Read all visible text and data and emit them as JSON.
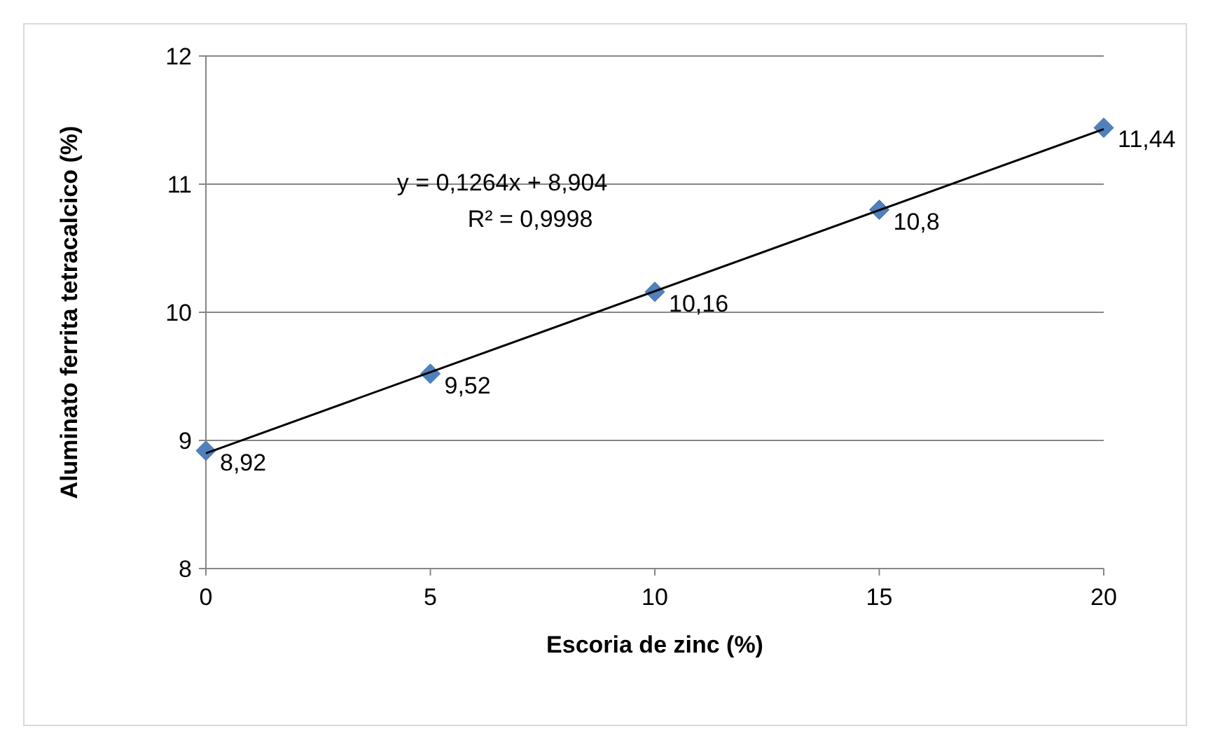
{
  "chart_data": {
    "type": "scatter",
    "xlabel": "Escoria de zinc (%)",
    "ylabel": "Aluminato ferrita tetracalcico (%)",
    "x": [
      0,
      5,
      10,
      15,
      20
    ],
    "series": [
      {
        "color": "#4f81bd",
        "marker": "diamond",
        "values": [
          8.92,
          9.52,
          10.16,
          10.8,
          11.44
        ],
        "value_labels": [
          "8,92",
          "9,52",
          "10,16",
          "10,8",
          "11,44"
        ]
      },
      {
        "type": "line",
        "color": "#000000",
        "marker": "none",
        "line_style": "solid",
        "x": [
          0,
          20
        ],
        "values": [
          8.9,
          11.43
        ]
      }
    ],
    "annotations": [
      "y = 0,1264x + 8,904",
      "R² = 0,9998"
    ],
    "xlim": [
      0,
      20
    ],
    "xticks": [
      0,
      5,
      10,
      15,
      20
    ],
    "ylim": [
      8,
      12
    ],
    "yticks": [
      8,
      9,
      10,
      11,
      12
    ],
    "grid": "y"
  }
}
